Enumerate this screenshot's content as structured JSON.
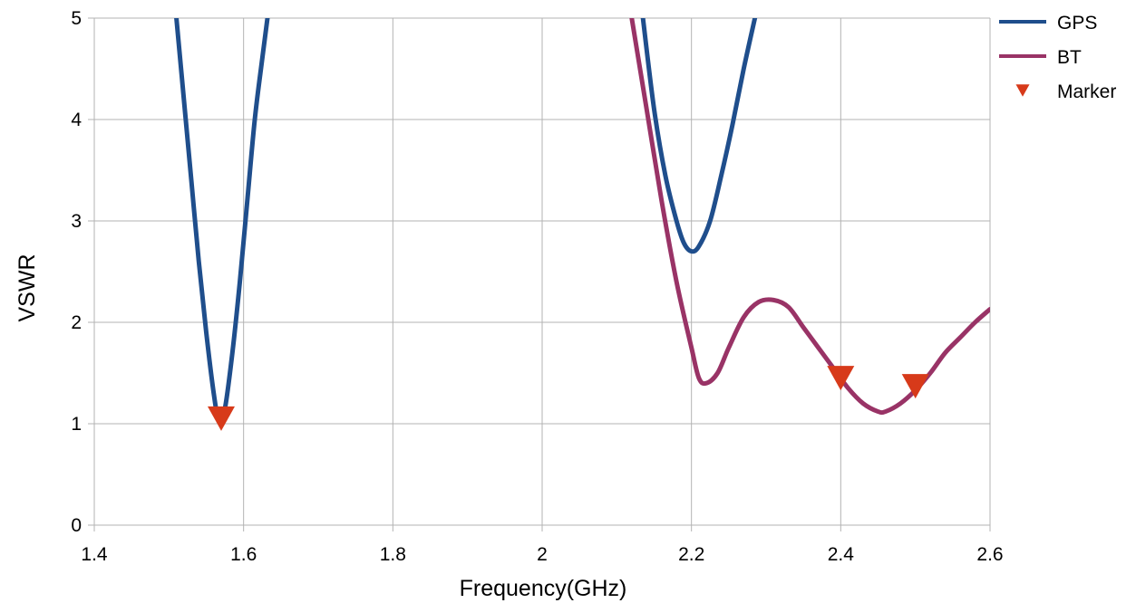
{
  "chart_data": {
    "type": "line",
    "title": "",
    "xlabel": "Frequency(GHz)",
    "ylabel": "VSWR",
    "xlim": [
      1.4,
      2.6
    ],
    "ylim": [
      0,
      5
    ],
    "x_ticks": [
      "1.4",
      "1.6",
      "1.8",
      "2",
      "2.2",
      "2.4",
      "2.6"
    ],
    "y_ticks": [
      "0",
      "1",
      "2",
      "3",
      "4",
      "5"
    ],
    "grid": true,
    "legend_position": "right",
    "series": [
      {
        "name": "GPS",
        "color": "#1f4e8c",
        "segments": [
          [
            [
              1.51,
              5.0
            ],
            [
              1.52,
              4.2
            ],
            [
              1.53,
              3.4
            ],
            [
              1.54,
              2.6
            ],
            [
              1.55,
              1.9
            ],
            [
              1.56,
              1.3
            ],
            [
              1.567,
              1.03
            ],
            [
              1.575,
              1.15
            ],
            [
              1.585,
              1.7
            ],
            [
              1.595,
              2.4
            ],
            [
              1.605,
              3.2
            ],
            [
              1.615,
              4.0
            ],
            [
              1.625,
              4.6
            ],
            [
              1.632,
              5.0
            ]
          ],
          [
            [
              2.135,
              5.0
            ],
            [
              2.15,
              4.1
            ],
            [
              2.165,
              3.45
            ],
            [
              2.18,
              3.0
            ],
            [
              2.19,
              2.78
            ],
            [
              2.2,
              2.7
            ],
            [
              2.21,
              2.75
            ],
            [
              2.225,
              3.0
            ],
            [
              2.24,
              3.45
            ],
            [
              2.255,
              3.95
            ],
            [
              2.27,
              4.5
            ],
            [
              2.285,
              5.0
            ]
          ]
        ]
      },
      {
        "name": "BT",
        "color": "#993366",
        "segments": [
          [
            [
              2.12,
              5.0
            ],
            [
              2.14,
              4.1
            ],
            [
              2.16,
              3.2
            ],
            [
              2.18,
              2.4
            ],
            [
              2.2,
              1.75
            ],
            [
              2.21,
              1.45
            ],
            [
              2.22,
              1.4
            ],
            [
              2.235,
              1.5
            ],
            [
              2.25,
              1.75
            ],
            [
              2.27,
              2.05
            ],
            [
              2.29,
              2.2
            ],
            [
              2.31,
              2.22
            ],
            [
              2.33,
              2.15
            ],
            [
              2.35,
              1.95
            ],
            [
              2.37,
              1.75
            ],
            [
              2.39,
              1.55
            ],
            [
              2.41,
              1.35
            ],
            [
              2.43,
              1.2
            ],
            [
              2.45,
              1.12
            ],
            [
              2.46,
              1.12
            ],
            [
              2.48,
              1.2
            ],
            [
              2.5,
              1.33
            ],
            [
              2.52,
              1.5
            ],
            [
              2.54,
              1.7
            ],
            [
              2.56,
              1.85
            ],
            [
              2.58,
              2.0
            ],
            [
              2.6,
              2.13
            ]
          ]
        ]
      }
    ],
    "markers": {
      "name": "Marker",
      "color": "#d73a1a",
      "points": [
        [
          1.57,
          1.05
        ],
        [
          2.4,
          1.45
        ],
        [
          2.5,
          1.37
        ]
      ]
    }
  }
}
